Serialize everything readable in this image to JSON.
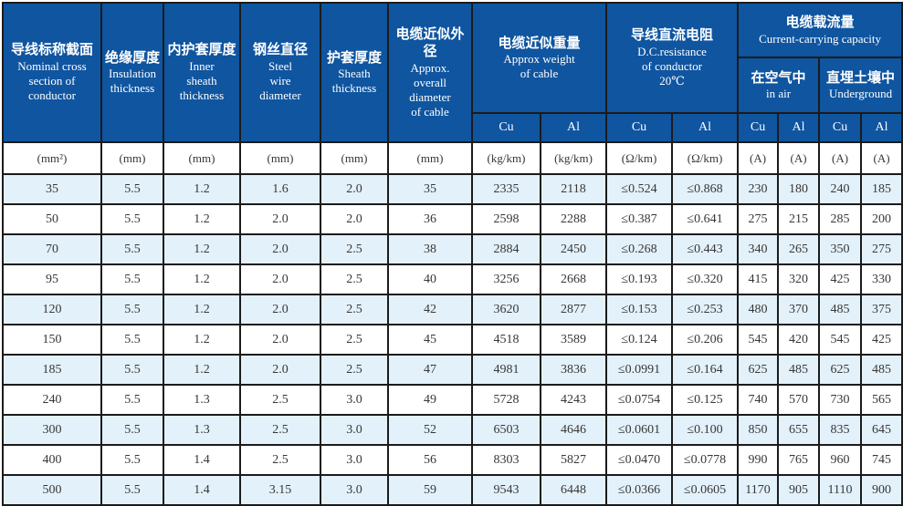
{
  "colors": {
    "header_blue": "#0f55a0",
    "stripe_blue": "#e3f1fa",
    "border_dark": "#1b1b1b",
    "header_text": "#ffffff",
    "body_text": "#373737",
    "page_bg": "#ffffff"
  },
  "table": {
    "columns": [
      {
        "zh": "导线标称截面",
        "en": "Nominal cross\nsection of\nconductor"
      },
      {
        "zh": "绝缘厚度",
        "en": "Insulation\nthickness"
      },
      {
        "zh": "内护套厚度",
        "en": "Inner\nsheath\nthickness"
      },
      {
        "zh": "钢丝直径",
        "en": "Steel\nwire\ndiameter"
      },
      {
        "zh": "护套厚度",
        "en": "Sheath\nthickness"
      },
      {
        "zh": "电缆近似外径",
        "en": "Approx.\noverall\ndiameter\nof cable"
      }
    ],
    "groups": {
      "weight": {
        "zh": "电缆近似重量",
        "en": "Approx weight\nof cable",
        "sub": [
          "Cu",
          "Al"
        ]
      },
      "resistance": {
        "zh": "导线直流电阻",
        "en": "D.C.resistance\nof conductor\n20℃",
        "sub": [
          "Cu",
          "Al"
        ]
      },
      "capacity": {
        "zh": "电缆载流量",
        "en": "Current-carrying capacity",
        "air": {
          "zh": "在空气中",
          "en": "in air",
          "sub": [
            "Cu",
            "Al"
          ]
        },
        "underground": {
          "zh": "直埋土壤中",
          "en": "Underground",
          "sub": [
            "Cu",
            "Al"
          ]
        }
      }
    },
    "units": [
      "(mm²)",
      "(mm)",
      "(mm)",
      "(mm)",
      "(mm)",
      "(mm)",
      "(kg/km)",
      "(kg/km)",
      "(Ω/km)",
      "(Ω/km)",
      "(A)",
      "(A)",
      "(A)",
      "(A)"
    ],
    "rows": [
      [
        "35",
        "5.5",
        "1.2",
        "1.6",
        "2.0",
        "35",
        "2335",
        "2118",
        "≤0.524",
        "≤0.868",
        "230",
        "180",
        "240",
        "185"
      ],
      [
        "50",
        "5.5",
        "1.2",
        "2.0",
        "2.0",
        "36",
        "2598",
        "2288",
        "≤0.387",
        "≤0.641",
        "275",
        "215",
        "285",
        "200"
      ],
      [
        "70",
        "5.5",
        "1.2",
        "2.0",
        "2.5",
        "38",
        "2884",
        "2450",
        "≤0.268",
        "≤0.443",
        "340",
        "265",
        "350",
        "275"
      ],
      [
        "95",
        "5.5",
        "1.2",
        "2.0",
        "2.5",
        "40",
        "3256",
        "2668",
        "≤0.193",
        "≤0.320",
        "415",
        "320",
        "425",
        "330"
      ],
      [
        "120",
        "5.5",
        "1.2",
        "2.0",
        "2.5",
        "42",
        "3620",
        "2877",
        "≤0.153",
        "≤0.253",
        "480",
        "370",
        "485",
        "375"
      ],
      [
        "150",
        "5.5",
        "1.2",
        "2.0",
        "2.5",
        "45",
        "4518",
        "3589",
        "≤0.124",
        "≤0.206",
        "545",
        "420",
        "545",
        "425"
      ],
      [
        "185",
        "5.5",
        "1.2",
        "2.0",
        "2.5",
        "47",
        "4981",
        "3836",
        "≤0.0991",
        "≤0.164",
        "625",
        "485",
        "625",
        "485"
      ],
      [
        "240",
        "5.5",
        "1.3",
        "2.5",
        "3.0",
        "49",
        "5728",
        "4243",
        "≤0.0754",
        "≤0.125",
        "740",
        "570",
        "730",
        "565"
      ],
      [
        "300",
        "5.5",
        "1.3",
        "2.5",
        "3.0",
        "52",
        "6503",
        "4646",
        "≤0.0601",
        "≤0.100",
        "850",
        "655",
        "835",
        "645"
      ],
      [
        "400",
        "5.5",
        "1.4",
        "2.5",
        "3.0",
        "56",
        "8303",
        "5827",
        "≤0.0470",
        "≤0.0778",
        "990",
        "765",
        "960",
        "745"
      ],
      [
        "500",
        "5.5",
        "1.4",
        "3.15",
        "3.0",
        "59",
        "9543",
        "6448",
        "≤0.0366",
        "≤0.0605",
        "1170",
        "905",
        "1110",
        "900"
      ]
    ]
  }
}
